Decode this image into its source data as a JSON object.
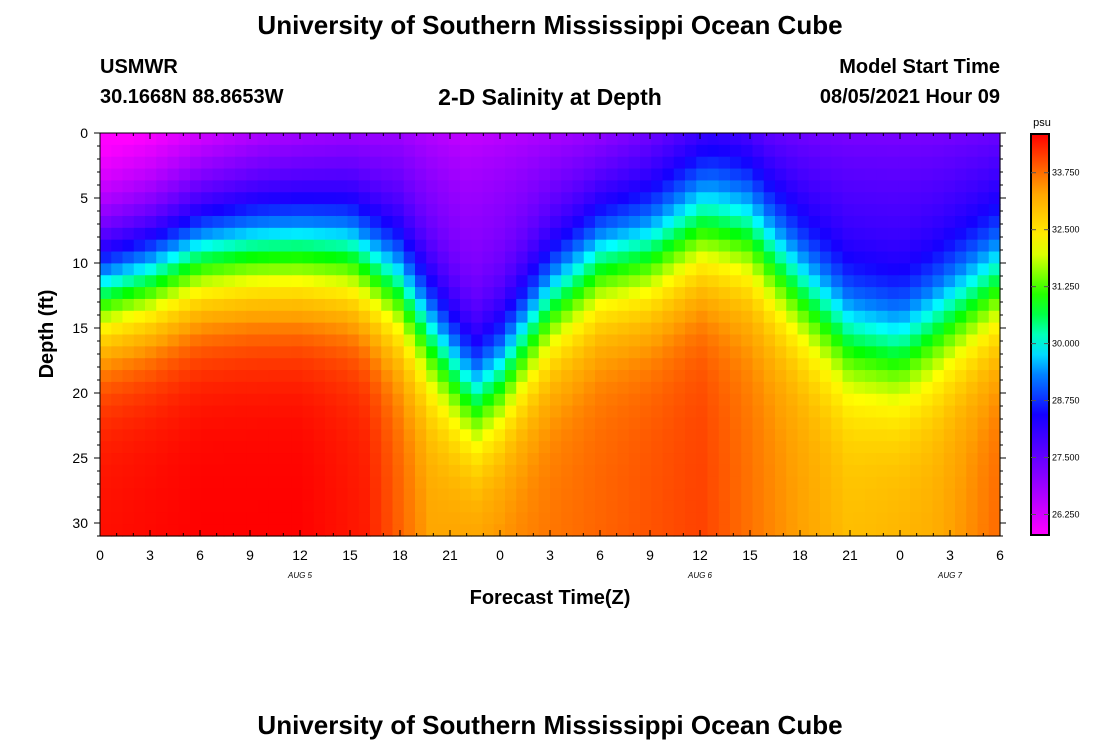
{
  "header": {
    "title": "University of Southern Mississippi Ocean Cube",
    "station": "USMWR",
    "coords": "30.1668N  88.8653W",
    "subtitle": "2-D Salinity at Depth",
    "model_label": "Model Start Time",
    "model_time": "08/05/2021 Hour 09"
  },
  "footer": {
    "title": "University of Southern Mississippi Ocean Cube"
  },
  "colorbar": {
    "unit": "psu",
    "tick_labels": [
      "26.250",
      "27.500",
      "28.750",
      "30.000",
      "31.250",
      "32.500",
      "33.750"
    ],
    "tick_values": [
      26.25,
      27.5,
      28.75,
      30.0,
      31.25,
      32.5,
      33.75
    ],
    "range": [
      25.8,
      34.6
    ]
  },
  "chart_data": {
    "type": "heatmap",
    "title": "2-D Salinity at Depth",
    "xlabel": "Forecast Time(Z)",
    "ylabel": "Depth (ft)",
    "x_tick_labels": [
      "0",
      "3",
      "6",
      "9",
      "12",
      "15",
      "18",
      "21",
      "0",
      "3",
      "6",
      "9",
      "12",
      "15",
      "18",
      "21",
      "0",
      "3",
      "6"
    ],
    "x_range_hours": [
      0,
      54
    ],
    "date_labels": [
      {
        "text": "AUG 5",
        "hour": 12
      },
      {
        "text": "AUG 6",
        "hour": 36
      },
      {
        "text": "AUG 7",
        "hour": 51
      }
    ],
    "y_tick_labels": [
      "0",
      "5",
      "10",
      "15",
      "20",
      "25",
      "30"
    ],
    "y_tick_values": [
      0,
      5,
      10,
      15,
      20,
      25,
      30
    ],
    "y_range_ft": [
      0,
      31
    ],
    "y_reversed": true,
    "thermocline_depth_ft": {
      "hours": [
        0,
        3,
        6,
        9,
        12,
        15,
        18,
        21,
        22.5,
        24,
        27,
        30,
        33,
        36,
        39,
        42,
        45,
        48,
        51,
        54
      ],
      "depth": [
        12,
        11,
        9.5,
        9.2,
        9.2,
        9.5,
        12,
        17.5,
        20,
        18.5,
        13,
        10,
        9.5,
        7.5,
        8,
        12,
        15.5,
        16.5,
        14,
        11.5
      ]
    },
    "bottom_salinity_psu": {
      "hours": [
        0,
        6,
        12,
        16,
        20,
        27,
        36,
        40,
        45,
        50,
        54
      ],
      "value": [
        34.5,
        34.6,
        34.6,
        34.4,
        33.3,
        33.7,
        34.1,
        33.6,
        33.0,
        33.2,
        33.8
      ]
    },
    "surface_salinity_psu": {
      "hours": [
        0,
        3,
        7,
        10,
        14,
        18,
        22,
        26,
        30,
        34,
        37,
        40,
        45,
        50,
        54
      ],
      "value": [
        26.0,
        26.2,
        26.6,
        26.9,
        27.1,
        27.3,
        27.0,
        27.2,
        27.3,
        27.8,
        28.2,
        27.9,
        27.8,
        27.8,
        27.9
      ]
    }
  }
}
